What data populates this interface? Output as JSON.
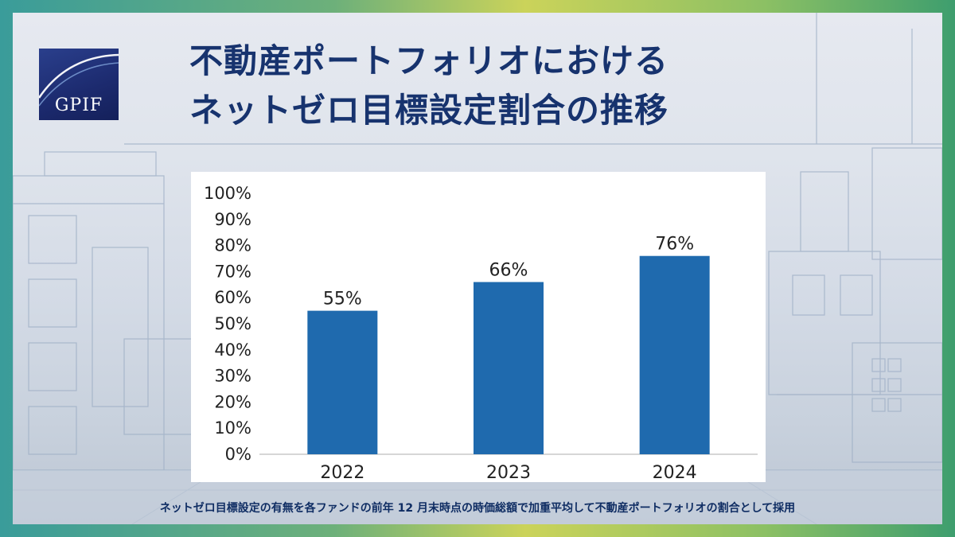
{
  "brand": {
    "logo_text": "GPIF"
  },
  "title": {
    "line1": "不動産ポートフォリオにおける",
    "line2": "ネットゼロ目標設定割合の推移"
  },
  "footnote": "ネットゼロ目標設定の有無を各ファンドの前年 12 月末時点の時価総額で加重平均して不動産ポートフォリオの割合として採用",
  "colors": {
    "bar": "#1f6aae",
    "title": "#17336e",
    "accent": "#1c2a6e"
  },
  "chart_data": {
    "type": "bar",
    "categories": [
      "2022",
      "2023",
      "2024"
    ],
    "values": [
      55,
      66,
      76
    ],
    "value_labels": [
      "55%",
      "66%",
      "76%"
    ],
    "ylim": [
      0,
      100
    ],
    "yticks": [
      "0%",
      "10%",
      "20%",
      "30%",
      "40%",
      "50%",
      "60%",
      "70%",
      "80%",
      "90%",
      "100%"
    ],
    "grid": false,
    "legend": "none"
  }
}
